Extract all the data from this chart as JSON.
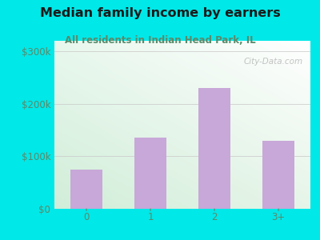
{
  "categories": [
    "0",
    "1",
    "2",
    "3+"
  ],
  "values": [
    75000,
    135000,
    230000,
    130000
  ],
  "bar_color": "#c8a8d8",
  "title": "Median family income by earners",
  "subtitle": "All residents in Indian Head Park, IL",
  "title_color": "#1a1a1a",
  "subtitle_color": "#5a8a6a",
  "yticks": [
    0,
    100000,
    200000,
    300000
  ],
  "ytick_labels": [
    "$0",
    "$100k",
    "$200k",
    "$300k"
  ],
  "ylim": [
    0,
    320000
  ],
  "background_color": "#00e8e8",
  "plot_bg_topleft": "#e8f8f0",
  "plot_bg_topright": "#ffffff",
  "plot_bg_bottomleft": "#d0edd8",
  "plot_bg_bottomright": "#eaf6ee",
  "watermark": "City-Data.com",
  "tick_color": "#5a8a6a",
  "title_fontsize": 11.5,
  "subtitle_fontsize": 8.5,
  "grid_color": "#cccccc"
}
